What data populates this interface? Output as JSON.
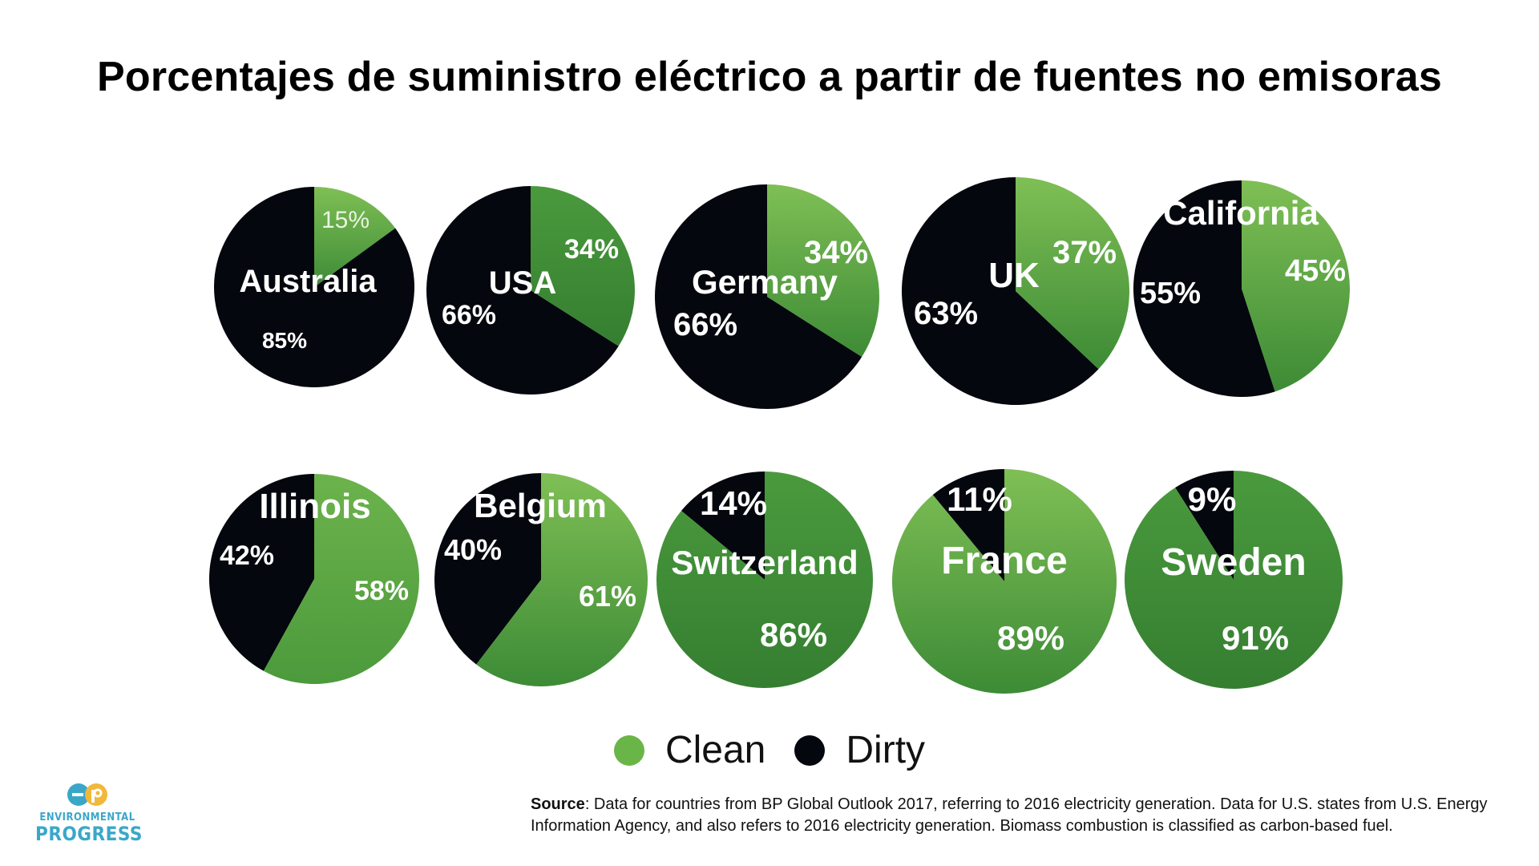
{
  "title": "Porcentajes de suministro eléctrico a partir de fuentes no emisoras",
  "legend": [
    {
      "label": "Clean",
      "color": "#6ab547"
    },
    {
      "label": "Dirty",
      "color": "#04070d"
    }
  ],
  "colors": {
    "clean": "#5aa641",
    "clean_dark": "#3c8a35",
    "dirty": "#04070d"
  },
  "chart_data": [
    {
      "type": "pie",
      "label": "Australia",
      "values": {
        "Clean": 15,
        "Dirty": 85
      },
      "data_labels": [
        "15%",
        "85%"
      ]
    },
    {
      "type": "pie",
      "label": "USA",
      "values": {
        "Clean": 34,
        "Dirty": 66
      },
      "data_labels": [
        "34%",
        "66%"
      ]
    },
    {
      "type": "pie",
      "label": "Germany",
      "values": {
        "Clean": 34,
        "Dirty": 66
      },
      "data_labels": [
        "34%",
        "66%"
      ]
    },
    {
      "type": "pie",
      "label": "UK",
      "values": {
        "Clean": 37,
        "Dirty": 63
      },
      "data_labels": [
        "37%",
        "63%"
      ]
    },
    {
      "type": "pie",
      "label": "California",
      "values": {
        "Clean": 45,
        "Dirty": 55
      },
      "data_labels": [
        "45%",
        "55%"
      ]
    },
    {
      "type": "pie",
      "label": "Illinois",
      "values": {
        "Clean": 58,
        "Dirty": 42
      },
      "data_labels": [
        "58%",
        "42%"
      ]
    },
    {
      "type": "pie",
      "label": "Belgium",
      "values": {
        "Clean": 61,
        "Dirty": 40
      },
      "data_labels": [
        "61%",
        "40%"
      ]
    },
    {
      "type": "pie",
      "label": "Switzerland",
      "values": {
        "Clean": 86,
        "Dirty": 14
      },
      "data_labels": [
        "86%",
        "14%"
      ]
    },
    {
      "type": "pie",
      "label": "France",
      "values": {
        "Clean": 89,
        "Dirty": 11
      },
      "data_labels": [
        "89%",
        "11%"
      ]
    },
    {
      "type": "pie",
      "label": "Sweden",
      "values": {
        "Clean": 91,
        "Dirty": 9
      },
      "data_labels": [
        "91%",
        "9%"
      ]
    }
  ],
  "logo": {
    "line1": "ENVIRONMENTAL",
    "line2": "PROGRESS",
    "mark": "ep"
  },
  "source": {
    "label": "Source",
    "text": ": Data for countries from BP Global Outlook 2017, referring to 2016 electricity generation. Data for U.S. states from U.S. Energy Information Agency, and also refers to 2016 electricity generation. Biomass combustion  is classified as carbon-based fuel."
  }
}
